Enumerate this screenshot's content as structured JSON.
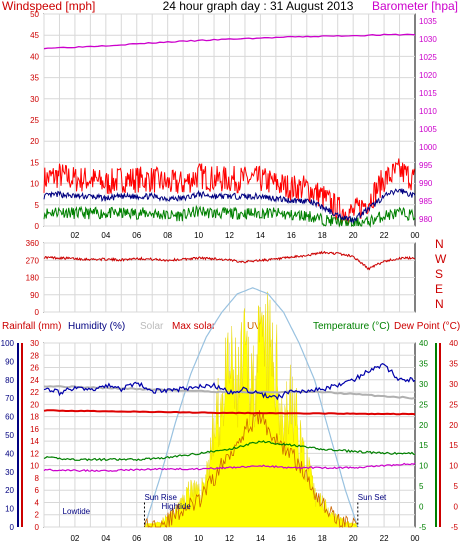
{
  "title": "24 hour graph day : 31 August 2013",
  "colors": {
    "wind_axis": "#cc0000",
    "wind_gust": "#ff0000",
    "wind_avg": "#000080",
    "wind_speed": "#008000",
    "baro": "#cc00cc",
    "direction": "#cc0000",
    "grid": "#d8d8d8",
    "rain_axis": "#cc0000",
    "humidity_axis": "#000080",
    "humidity": "#0000aa",
    "maxsolar_line": "#aaaaaa",
    "solar_fill": "#ffff00",
    "uv_line": "#cc6600",
    "temperature": "#008000",
    "dewpoint": "#cc00cc",
    "dewpoint_axis": "#cc0000",
    "temp_axis": "#008000",
    "maxsolar_curve": "#99c2e0",
    "daylight_border": "#000000",
    "grey_line": "#b0b0b0",
    "red_line": "#dd0000"
  },
  "chart_data": [
    {
      "type": "line",
      "title": "",
      "left_label": "Windspeed [mph]",
      "right_label": "Barometer [hpa]",
      "x_ticks": [
        "02",
        "04",
        "06",
        "08",
        "10",
        "12",
        "14",
        "16",
        "18",
        "20",
        "22",
        "00"
      ],
      "x_range_hours": [
        0,
        24
      ],
      "y_left_ticks": [
        "0",
        "5",
        "10",
        "15",
        "20",
        "25",
        "30",
        "35",
        "40",
        "45",
        "50"
      ],
      "y_left_range": [
        0,
        50
      ],
      "y_right_ticks": [
        "980",
        "985",
        "990",
        "995",
        "1000",
        "1005",
        "1010",
        "1015",
        "1020",
        "1025",
        "1030",
        "1035"
      ],
      "y_right_range": [
        978,
        1037
      ],
      "series": [
        {
          "name": "Barometer",
          "hours": [
            0,
            2,
            4,
            6,
            8,
            10,
            12,
            14,
            16,
            18,
            20,
            22,
            24
          ],
          "values": [
            1027.5,
            1027.8,
            1028.2,
            1028.7,
            1029.2,
            1029.6,
            1030.0,
            1030.3,
            1030.6,
            1030.8,
            1031.0,
            1031.2,
            1031.3
          ]
        },
        {
          "name": "Gust",
          "hours": [
            0,
            1,
            2,
            3,
            4,
            5,
            6,
            7,
            8,
            9,
            10,
            11,
            12,
            13,
            14,
            15,
            16,
            17,
            18,
            19,
            20,
            21,
            22,
            23,
            24
          ],
          "values": [
            11,
            12,
            11,
            11,
            10,
            11,
            11,
            11,
            10,
            10,
            12,
            11,
            11,
            11,
            11,
            10,
            9,
            9,
            7,
            4,
            3,
            6,
            11,
            13,
            11
          ]
        },
        {
          "name": "Average",
          "hours": [
            0,
            1,
            2,
            3,
            4,
            5,
            6,
            7,
            8,
            9,
            10,
            11,
            12,
            13,
            14,
            15,
            16,
            17,
            18,
            19,
            20,
            21,
            22,
            23,
            24
          ],
          "values": [
            7,
            7.5,
            7,
            7,
            6.5,
            7,
            7,
            7,
            6.5,
            6.5,
            7.5,
            7,
            7,
            7,
            7,
            6.5,
            6,
            6,
            4.5,
            2.5,
            1.5,
            4,
            7,
            8.5,
            7
          ]
        },
        {
          "name": "Speed",
          "hours": [
            0,
            1,
            2,
            3,
            4,
            5,
            6,
            7,
            8,
            9,
            10,
            11,
            12,
            13,
            14,
            15,
            16,
            17,
            18,
            19,
            20,
            21,
            22,
            23,
            24
          ],
          "values": [
            3,
            3.5,
            3,
            3,
            3,
            3,
            3,
            3,
            2.5,
            2.5,
            3.5,
            3,
            3,
            3,
            3,
            3,
            2.5,
            2.5,
            1.5,
            1,
            0.5,
            1,
            2.5,
            3,
            2.5
          ]
        }
      ]
    },
    {
      "type": "line",
      "title": "",
      "y_left_ticks": [
        "0",
        "90",
        "180",
        "270",
        "360"
      ],
      "y_left_range": [
        0,
        360
      ],
      "y_right_labels": [
        "N",
        "W",
        "S",
        "E",
        "N"
      ],
      "x_range_hours": [
        0,
        24
      ],
      "series": [
        {
          "name": "Wind direction",
          "hours": [
            0,
            1,
            2,
            3,
            4,
            5,
            6,
            7,
            8,
            9,
            10,
            11,
            12,
            13,
            14,
            15,
            16,
            17,
            18,
            19,
            20,
            21,
            22,
            23,
            24
          ],
          "values": [
            285,
            282,
            278,
            275,
            275,
            272,
            280,
            275,
            270,
            275,
            282,
            278,
            270,
            262,
            270,
            275,
            285,
            295,
            310,
            305,
            290,
            225,
            265,
            280,
            282
          ]
        }
      ]
    },
    {
      "type": "area",
      "title": "",
      "labels": {
        "rainfall": "Rainfall (mm)",
        "humidity": "Humidity (%)",
        "solar": "Solar",
        "max_solar": "Max solar",
        "uv": "UV",
        "temperature": "Temperature (°C)",
        "dew_point": "Dew Point (°C)"
      },
      "x_ticks": [
        "02",
        "04",
        "06",
        "08",
        "10",
        "12",
        "14",
        "16",
        "18",
        "20",
        "22",
        "00"
      ],
      "x_range_hours": [
        0,
        24
      ],
      "axis_humidity_ticks": [
        "0",
        "10",
        "20",
        "30",
        "40",
        "50",
        "60",
        "70",
        "80",
        "90",
        "100"
      ],
      "axis_humidity_range": [
        0,
        100
      ],
      "axis_rain_ticks": [
        "0",
        "2",
        "4",
        "6",
        "8",
        "10",
        "12",
        "14",
        "16",
        "18",
        "20",
        "22",
        "24",
        "26",
        "28",
        "30"
      ],
      "axis_rain_range": [
        0,
        30
      ],
      "axis_temp_ticks": [
        "-5",
        "0",
        "5",
        "10",
        "15",
        "20",
        "25",
        "30",
        "35",
        "40"
      ],
      "axis_temp_range": [
        -5,
        40
      ],
      "annotations": [
        {
          "text": "Lowtide",
          "hour": 1.2
        },
        {
          "text": "Sun Rise",
          "hour": 6.5
        },
        {
          "text": "Hightide",
          "hour": 7.6
        },
        {
          "text": "Sun Set",
          "hour": 20.3
        }
      ],
      "sunrise_hour": 6.5,
      "sunset_hour": 20.3,
      "series": [
        {
          "name": "Humidity",
          "hours": [
            0,
            1,
            2,
            3,
            4,
            5,
            6,
            7,
            8,
            9,
            10,
            11,
            12,
            13,
            14,
            15,
            16,
            17,
            18,
            19,
            20,
            21,
            22,
            23,
            24
          ],
          "values": [
            76,
            73,
            76,
            74,
            77,
            75,
            78,
            74,
            74,
            75,
            76,
            77,
            73,
            75,
            72,
            70,
            74,
            74,
            75,
            77,
            80,
            85,
            88,
            80,
            80
          ]
        },
        {
          "name": "Grey line",
          "hours": [
            0,
            6,
            12,
            18,
            24
          ],
          "values": [
            23,
            22.5,
            22,
            22,
            21
          ]
        },
        {
          "name": "Red line",
          "hours": [
            0,
            6,
            12,
            18,
            24
          ],
          "values": [
            19,
            18.8,
            18.6,
            18.5,
            18.4
          ]
        },
        {
          "name": "Temperature",
          "hours": [
            0,
            2,
            4,
            6,
            8,
            10,
            12,
            14,
            15,
            16,
            18,
            20,
            22,
            24
          ],
          "values": [
            12,
            11.5,
            11.5,
            11.5,
            12,
            13,
            14,
            16,
            15.5,
            15,
            14,
            13.5,
            13,
            13
          ]
        },
        {
          "name": "Dew Point",
          "hours": [
            0,
            2,
            4,
            6,
            8,
            10,
            12,
            14,
            16,
            18,
            20,
            22,
            24
          ],
          "values": [
            9,
            8.8,
            8.8,
            9,
            9.2,
            9.2,
            9.5,
            10,
            9.5,
            9.5,
            9.5,
            10,
            10.5
          ]
        },
        {
          "name": "Solar",
          "hours": [
            6.5,
            7,
            7.5,
            8,
            8.5,
            9,
            9.5,
            10,
            10.5,
            11,
            11.5,
            12,
            12.5,
            13,
            13.5,
            14,
            14.5,
            15,
            15.5,
            16,
            16.5,
            17,
            17.5,
            18,
            18.5,
            19,
            19.5,
            20,
            20.3
          ],
          "values": [
            0,
            0.5,
            1,
            2,
            3,
            5,
            8,
            6,
            10,
            18,
            24,
            30,
            26,
            32,
            28,
            33,
            34,
            30,
            20,
            24,
            18,
            12,
            6,
            5,
            3,
            2,
            1,
            0.5,
            0
          ]
        },
        {
          "name": "UV",
          "hours": [
            6.5,
            8,
            9,
            10,
            11,
            12,
            13,
            14,
            15,
            16,
            17,
            18,
            19,
            20.3
          ],
          "values": [
            0,
            1,
            3,
            4,
            8,
            12,
            16,
            18,
            14,
            12,
            8,
            4,
            1,
            0
          ]
        },
        {
          "name": "Max solar",
          "hours": [
            6.5,
            7.5,
            8.5,
            9.5,
            10.5,
            11.5,
            12.5,
            13.5,
            14.5,
            15.5,
            16.5,
            17.5,
            18.5,
            19.5,
            20.3
          ],
          "values": [
            0,
            8,
            17,
            25,
            31,
            35,
            38,
            39,
            38,
            35,
            30,
            24,
            15,
            6,
            0
          ]
        }
      ]
    }
  ]
}
